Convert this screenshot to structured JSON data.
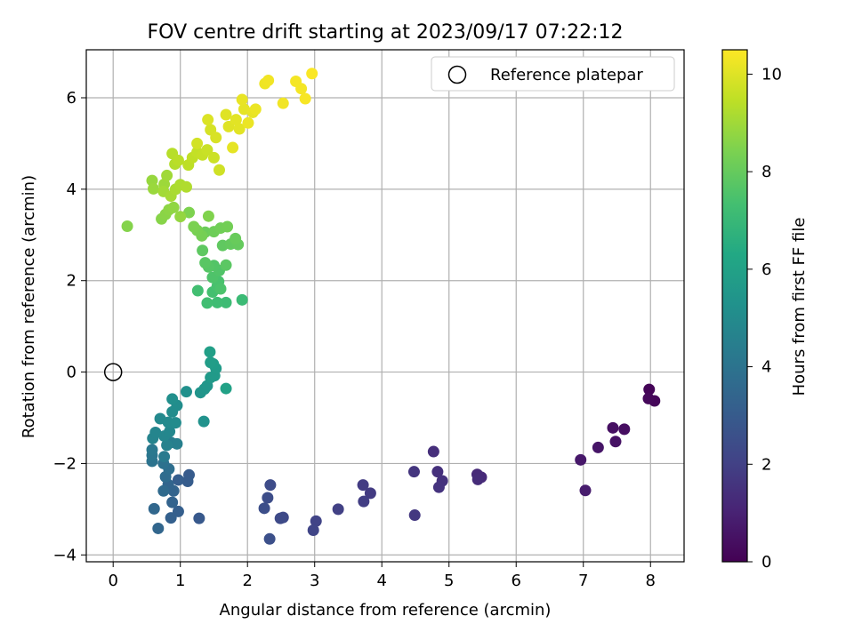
{
  "chart_data": {
    "type": "scatter",
    "title": "FOV centre drift starting at 2023/09/17 07:22:12",
    "xlabel": "Angular distance from reference (arcmin)",
    "ylabel": "Rotation from reference (arcmin)",
    "xlim": [
      -0.4,
      8.5
    ],
    "ylim": [
      -4.15,
      7.05
    ],
    "xticks": [
      0,
      1,
      2,
      3,
      4,
      5,
      6,
      7,
      8
    ],
    "yticks": [
      -4,
      -2,
      0,
      2,
      4,
      6
    ],
    "grid": true,
    "legend": {
      "placement": "top-right",
      "entries": [
        "Reference platepar"
      ]
    },
    "reference_point": {
      "x": 0,
      "y": 0
    },
    "colorbar": {
      "label": "Hours from first FF file",
      "ticks": [
        0,
        2,
        4,
        6,
        8,
        10
      ],
      "range": [
        0,
        10.5
      ],
      "colormap": "viridis"
    },
    "points": [
      {
        "x": 7.98,
        "y": -0.38,
        "h": 0.1
      },
      {
        "x": 8.06,
        "y": -0.63,
        "h": 0.15
      },
      {
        "x": 7.97,
        "y": -0.58,
        "h": 0.2
      },
      {
        "x": 7.61,
        "y": -1.25,
        "h": 0.4
      },
      {
        "x": 7.44,
        "y": -1.22,
        "h": 0.45
      },
      {
        "x": 7.48,
        "y": -1.52,
        "h": 0.5
      },
      {
        "x": 7.22,
        "y": -1.65,
        "h": 0.6
      },
      {
        "x": 6.96,
        "y": -1.92,
        "h": 0.7
      },
      {
        "x": 7.03,
        "y": -2.59,
        "h": 0.8
      },
      {
        "x": 5.48,
        "y": -2.3,
        "h": 1.2
      },
      {
        "x": 5.42,
        "y": -2.24,
        "h": 1.25
      },
      {
        "x": 5.43,
        "y": -2.35,
        "h": 1.3
      },
      {
        "x": 4.77,
        "y": -1.74,
        "h": 1.4
      },
      {
        "x": 4.83,
        "y": -2.18,
        "h": 1.45
      },
      {
        "x": 4.9,
        "y": -2.38,
        "h": 1.5
      },
      {
        "x": 4.85,
        "y": -2.52,
        "h": 1.55
      },
      {
        "x": 4.48,
        "y": -2.18,
        "h": 1.6
      },
      {
        "x": 4.49,
        "y": -3.13,
        "h": 1.7
      },
      {
        "x": 3.83,
        "y": -2.65,
        "h": 1.8
      },
      {
        "x": 3.72,
        "y": -2.47,
        "h": 1.85
      },
      {
        "x": 3.73,
        "y": -2.83,
        "h": 1.9
      },
      {
        "x": 3.35,
        "y": -3.0,
        "h": 2.0
      },
      {
        "x": 3.02,
        "y": -3.26,
        "h": 2.1
      },
      {
        "x": 2.98,
        "y": -3.46,
        "h": 2.15
      },
      {
        "x": 2.53,
        "y": -3.18,
        "h": 2.3
      },
      {
        "x": 2.49,
        "y": -3.2,
        "h": 2.35
      },
      {
        "x": 2.34,
        "y": -2.47,
        "h": 2.4
      },
      {
        "x": 2.3,
        "y": -2.75,
        "h": 2.45
      },
      {
        "x": 2.25,
        "y": -2.98,
        "h": 2.5
      },
      {
        "x": 2.33,
        "y": -3.65,
        "h": 2.55
      },
      {
        "x": 1.28,
        "y": -3.2,
        "h": 2.9
      },
      {
        "x": 1.13,
        "y": -2.25,
        "h": 3.0
      },
      {
        "x": 1.11,
        "y": -2.39,
        "h": 3.05
      },
      {
        "x": 0.97,
        "y": -2.36,
        "h": 3.1
      },
      {
        "x": 0.97,
        "y": -3.05,
        "h": 3.15
      },
      {
        "x": 0.86,
        "y": -3.19,
        "h": 3.2
      },
      {
        "x": 0.88,
        "y": -2.85,
        "h": 3.3
      },
      {
        "x": 0.9,
        "y": -2.6,
        "h": 3.35
      },
      {
        "x": 0.82,
        "y": -2.46,
        "h": 3.4
      },
      {
        "x": 0.67,
        "y": -3.42,
        "h": 3.45
      },
      {
        "x": 0.61,
        "y": -2.99,
        "h": 3.5
      },
      {
        "x": 0.75,
        "y": -2.6,
        "h": 3.6
      },
      {
        "x": 0.78,
        "y": -2.29,
        "h": 3.7
      },
      {
        "x": 0.83,
        "y": -2.12,
        "h": 3.8
      },
      {
        "x": 0.75,
        "y": -2.0,
        "h": 3.9
      },
      {
        "x": 0.58,
        "y": -1.95,
        "h": 4.0
      },
      {
        "x": 0.58,
        "y": -1.82,
        "h": 4.1
      },
      {
        "x": 0.58,
        "y": -1.7,
        "h": 4.2
      },
      {
        "x": 0.76,
        "y": -1.85,
        "h": 4.3
      },
      {
        "x": 0.86,
        "y": -1.54,
        "h": 4.4
      },
      {
        "x": 0.95,
        "y": -1.57,
        "h": 4.5
      },
      {
        "x": 0.8,
        "y": -1.6,
        "h": 4.6
      },
      {
        "x": 0.59,
        "y": -1.45,
        "h": 4.7
      },
      {
        "x": 0.63,
        "y": -1.32,
        "h": 4.75
      },
      {
        "x": 0.76,
        "y": -1.4,
        "h": 4.8
      },
      {
        "x": 0.84,
        "y": -1.3,
        "h": 4.85
      },
      {
        "x": 0.7,
        "y": -1.02,
        "h": 4.9
      },
      {
        "x": 0.82,
        "y": -1.1,
        "h": 4.95
      },
      {
        "x": 0.93,
        "y": -1.11,
        "h": 5.0
      },
      {
        "x": 0.88,
        "y": -0.87,
        "h": 5.05
      },
      {
        "x": 0.95,
        "y": -0.73,
        "h": 5.1
      },
      {
        "x": 0.88,
        "y": -0.59,
        "h": 5.15
      },
      {
        "x": 1.09,
        "y": -0.43,
        "h": 5.2
      },
      {
        "x": 1.35,
        "y": -1.08,
        "h": 5.3
      },
      {
        "x": 1.3,
        "y": -0.45,
        "h": 5.4
      },
      {
        "x": 1.36,
        "y": -0.37,
        "h": 5.45
      },
      {
        "x": 1.4,
        "y": -0.3,
        "h": 5.5
      },
      {
        "x": 1.45,
        "y": -0.12,
        "h": 5.6
      },
      {
        "x": 1.51,
        "y": -0.08,
        "h": 5.65
      },
      {
        "x": 1.53,
        "y": 0.08,
        "h": 5.7
      },
      {
        "x": 1.49,
        "y": 0.18,
        "h": 5.75
      },
      {
        "x": 1.45,
        "y": 0.21,
        "h": 5.8
      },
      {
        "x": 1.44,
        "y": 0.44,
        "h": 5.9
      },
      {
        "x": 1.68,
        "y": -0.36,
        "h": 6.0
      },
      {
        "x": 1.92,
        "y": 1.58,
        "h": 7.1
      },
      {
        "x": 1.68,
        "y": 1.52,
        "h": 7.15
      },
      {
        "x": 1.55,
        "y": 1.52,
        "h": 7.2
      },
      {
        "x": 1.4,
        "y": 1.51,
        "h": 7.25
      },
      {
        "x": 1.26,
        "y": 1.78,
        "h": 7.3
      },
      {
        "x": 1.48,
        "y": 1.75,
        "h": 7.35
      },
      {
        "x": 1.55,
        "y": 1.88,
        "h": 7.4
      },
      {
        "x": 1.57,
        "y": 1.98,
        "h": 7.45
      },
      {
        "x": 1.6,
        "y": 1.82,
        "h": 7.5
      },
      {
        "x": 1.48,
        "y": 2.07,
        "h": 7.55
      },
      {
        "x": 1.58,
        "y": 2.22,
        "h": 7.6
      },
      {
        "x": 1.5,
        "y": 2.33,
        "h": 7.65
      },
      {
        "x": 1.42,
        "y": 2.3,
        "h": 7.7
      },
      {
        "x": 1.37,
        "y": 2.39,
        "h": 7.75
      },
      {
        "x": 1.68,
        "y": 2.34,
        "h": 7.8
      },
      {
        "x": 1.33,
        "y": 2.66,
        "h": 7.85
      },
      {
        "x": 1.63,
        "y": 2.77,
        "h": 7.9
      },
      {
        "x": 1.75,
        "y": 2.8,
        "h": 7.95
      },
      {
        "x": 1.86,
        "y": 2.79,
        "h": 8.0
      },
      {
        "x": 1.82,
        "y": 2.92,
        "h": 8.05
      },
      {
        "x": 1.37,
        "y": 3.06,
        "h": 8.1
      },
      {
        "x": 1.5,
        "y": 3.07,
        "h": 8.15
      },
      {
        "x": 1.6,
        "y": 3.15,
        "h": 8.2
      },
      {
        "x": 1.7,
        "y": 3.18,
        "h": 8.25
      },
      {
        "x": 1.32,
        "y": 2.98,
        "h": 8.3
      },
      {
        "x": 1.25,
        "y": 3.1,
        "h": 8.35
      },
      {
        "x": 1.2,
        "y": 3.18,
        "h": 8.4
      },
      {
        "x": 1.13,
        "y": 3.49,
        "h": 8.45
      },
      {
        "x": 1.42,
        "y": 3.41,
        "h": 8.5
      },
      {
        "x": 0.21,
        "y": 3.19,
        "h": 8.55
      },
      {
        "x": 0.72,
        "y": 3.35,
        "h": 8.6
      },
      {
        "x": 0.78,
        "y": 3.45,
        "h": 8.65
      },
      {
        "x": 0.83,
        "y": 3.55,
        "h": 8.7
      },
      {
        "x": 0.9,
        "y": 3.6,
        "h": 8.75
      },
      {
        "x": 1.0,
        "y": 3.4,
        "h": 8.8
      },
      {
        "x": 0.58,
        "y": 4.19,
        "h": 8.85
      },
      {
        "x": 0.6,
        "y": 4.01,
        "h": 8.9
      },
      {
        "x": 0.76,
        "y": 4.11,
        "h": 8.95
      },
      {
        "x": 0.8,
        "y": 4.3,
        "h": 9.0
      },
      {
        "x": 0.75,
        "y": 3.95,
        "h": 9.05
      },
      {
        "x": 0.86,
        "y": 3.85,
        "h": 9.1
      },
      {
        "x": 0.93,
        "y": 4.0,
        "h": 9.15
      },
      {
        "x": 1.0,
        "y": 4.1,
        "h": 9.2
      },
      {
        "x": 1.09,
        "y": 4.05,
        "h": 9.25
      },
      {
        "x": 0.92,
        "y": 4.55,
        "h": 9.3
      },
      {
        "x": 0.88,
        "y": 4.78,
        "h": 9.35
      },
      {
        "x": 0.97,
        "y": 4.63,
        "h": 9.4
      },
      {
        "x": 1.12,
        "y": 4.53,
        "h": 9.45
      },
      {
        "x": 1.18,
        "y": 4.69,
        "h": 9.5
      },
      {
        "x": 1.25,
        "y": 4.81,
        "h": 9.55
      },
      {
        "x": 1.33,
        "y": 4.75,
        "h": 9.6
      },
      {
        "x": 1.4,
        "y": 4.86,
        "h": 9.65
      },
      {
        "x": 1.5,
        "y": 4.69,
        "h": 9.7
      },
      {
        "x": 1.58,
        "y": 4.42,
        "h": 9.75
      },
      {
        "x": 1.25,
        "y": 5.0,
        "h": 9.8
      },
      {
        "x": 1.45,
        "y": 5.3,
        "h": 9.85
      },
      {
        "x": 1.53,
        "y": 5.13,
        "h": 9.9
      },
      {
        "x": 1.41,
        "y": 5.52,
        "h": 9.95
      },
      {
        "x": 1.68,
        "y": 5.63,
        "h": 10.0
      },
      {
        "x": 1.72,
        "y": 5.37,
        "h": 10.0
      },
      {
        "x": 1.83,
        "y": 5.52,
        "h": 10.05
      },
      {
        "x": 1.88,
        "y": 5.32,
        "h": 10.05
      },
      {
        "x": 1.78,
        "y": 4.91,
        "h": 10.1
      },
      {
        "x": 1.95,
        "y": 5.75,
        "h": 10.1
      },
      {
        "x": 1.92,
        "y": 5.96,
        "h": 10.15
      },
      {
        "x": 2.08,
        "y": 5.68,
        "h": 10.15
      },
      {
        "x": 2.12,
        "y": 5.75,
        "h": 10.2
      },
      {
        "x": 2.01,
        "y": 5.45,
        "h": 10.2
      },
      {
        "x": 2.26,
        "y": 6.31,
        "h": 10.25
      },
      {
        "x": 2.31,
        "y": 6.38,
        "h": 10.3
      },
      {
        "x": 2.53,
        "y": 5.88,
        "h": 10.3
      },
      {
        "x": 2.72,
        "y": 6.36,
        "h": 10.35
      },
      {
        "x": 2.8,
        "y": 6.2,
        "h": 10.35
      },
      {
        "x": 2.86,
        "y": 5.98,
        "h": 10.4
      },
      {
        "x": 2.96,
        "y": 6.53,
        "h": 10.45
      }
    ]
  }
}
